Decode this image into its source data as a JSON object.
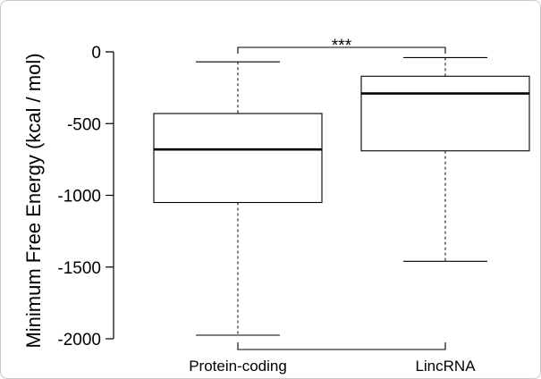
{
  "chart_data": {
    "type": "boxplot",
    "title": "",
    "xlabel": "",
    "ylabel": "Minimum Free Energy (kcal / mol)",
    "ylim": [
      -2030,
      30
    ],
    "yticks": [
      0,
      -500,
      -1000,
      -1500,
      -2000
    ],
    "categories": [
      "Protein-coding",
      "LincRNA"
    ],
    "boxes": [
      {
        "category": "Protein-coding",
        "whisker_high": -70,
        "q3": -430,
        "median": -680,
        "q1": -1050,
        "whisker_low": -1975
      },
      {
        "category": "LincRNA",
        "whisker_high": -40,
        "q3": -170,
        "median": -290,
        "q1": -690,
        "whisker_low": -1460
      }
    ],
    "annotation": "***",
    "grid": false,
    "legend": "none"
  }
}
